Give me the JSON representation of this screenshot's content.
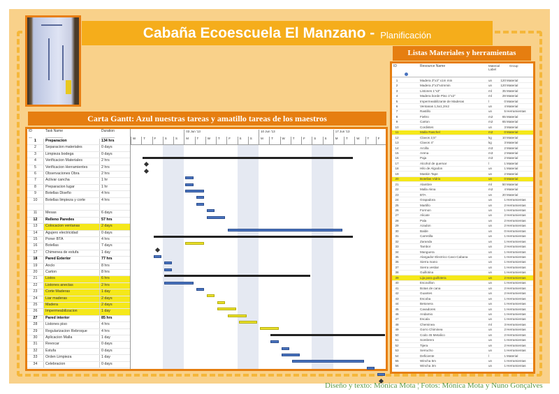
{
  "header": {
    "title": "Cabaña Ecoescuela El Manzano -",
    "subtitle": "Planificación"
  },
  "gantt": {
    "heading": "Carta Gantt: Azul nuestras tareas y amatillo tareas de los maestros",
    "columns": {
      "id": "ID",
      "name": "Task Name",
      "duration": "Duration"
    },
    "timeline": {
      "start": "2013-05-29",
      "end": "2013-06-21",
      "weeks": [
        "03 Jun '13",
        "10 Jun '13",
        "17 Jun '13"
      ],
      "day_letters": [
        "W",
        "T",
        "F",
        "S",
        "S",
        "M",
        "T",
        "W",
        "T",
        "F",
        "S",
        "S",
        "M",
        "T",
        "W",
        "T",
        "F",
        "S",
        "S",
        "M",
        "T",
        "W",
        "T",
        "F"
      ]
    },
    "colors": {
      "ours": "#4a74bf",
      "masters": "#e9e02a",
      "summary": "#222222",
      "highlight": "#f5e81a"
    },
    "tasks": [
      {
        "id": "1",
        "name": "Preparacion",
        "duration": "134 hrs",
        "kind": "summary",
        "start": "2013-05-30",
        "end": "2013-06-18"
      },
      {
        "id": "2",
        "name": "Separacion materiales",
        "duration": "0 days",
        "kind": "milestone",
        "start": "2013-05-30",
        "end": "2013-05-30"
      },
      {
        "id": "3",
        "name": "Limpieza bodega",
        "duration": "0 days",
        "kind": "milestone",
        "start": "2013-05-30",
        "end": "2013-05-30"
      },
      {
        "id": "4",
        "name": "Verificacion Materiales",
        "duration": "2 hrs",
        "kind": "ours",
        "start": "2013-06-03",
        "end": "2013-06-03"
      },
      {
        "id": "5",
        "name": "Verificacion Herramientes",
        "duration": "2 hrs",
        "kind": "ours",
        "start": "2013-06-03",
        "end": "2013-06-03"
      },
      {
        "id": "6",
        "name": "Observaciones Obra",
        "duration": "2 hrs",
        "kind": "ours",
        "start": "2013-06-03",
        "end": "2013-06-04"
      },
      {
        "id": "7",
        "name": "Activar cancha",
        "duration": "1 hr",
        "kind": "ours",
        "start": "2013-06-04",
        "end": "2013-06-04"
      },
      {
        "id": "8",
        "name": "Preparacion lugar",
        "duration": "1 hr",
        "kind": "ours",
        "start": "2013-06-04",
        "end": "2013-06-04"
      },
      {
        "id": "9",
        "name": "Botellas Diseño",
        "duration": "4 hrs",
        "kind": "ours",
        "start": "2013-06-05",
        "end": "2013-06-05"
      },
      {
        "id": "10",
        "name": "Botellas limpieza y corte",
        "duration": "4 hrs",
        "kind": "ours",
        "start": "2013-06-05",
        "end": "2013-06-06"
      },
      {
        "id": "",
        "name": "",
        "duration": "",
        "kind": "blank"
      },
      {
        "id": "11",
        "name": "Mesas",
        "duration": "6 days",
        "kind": "ours",
        "start": "2013-06-07",
        "end": "2013-06-17"
      },
      {
        "id": "12",
        "name": "Relleno Paredes",
        "duration": "57 hrs",
        "kind": "summary",
        "start": "2013-05-31",
        "end": "2013-06-18"
      },
      {
        "id": "13",
        "name": "Colocacion ventanas",
        "duration": "2 days",
        "kind": "masters",
        "start": "2013-06-03",
        "end": "2013-06-04"
      },
      {
        "id": "14",
        "name": "Agujero electricidad",
        "duration": "0 days",
        "kind": "milestone",
        "start": "2013-05-31",
        "end": "2013-05-31"
      },
      {
        "id": "15",
        "name": "Poner BTA",
        "duration": "4 hrs",
        "kind": "ours",
        "start": "2013-05-31",
        "end": "2013-05-31"
      },
      {
        "id": "16",
        "name": "Botellas",
        "duration": "7 days",
        "kind": "ours",
        "start": "2013-06-01",
        "end": "2013-06-01"
      },
      {
        "id": "17",
        "name": "Chimenea de estufa",
        "duration": "1 day",
        "kind": "ours",
        "start": "2013-06-01",
        "end": "2013-06-01"
      },
      {
        "id": "18",
        "name": "Pared Exterior",
        "duration": "77 hrs",
        "kind": "summary",
        "start": "2013-06-01",
        "end": "2013-06-14"
      },
      {
        "id": "19",
        "name": "Anclo",
        "duration": "8 hrs",
        "kind": "ours",
        "start": "2013-06-01",
        "end": "2013-06-03"
      },
      {
        "id": "20",
        "name": "Carton",
        "duration": "8 hrs",
        "kind": "ours",
        "start": "2013-06-04",
        "end": "2013-06-04"
      },
      {
        "id": "21",
        "name": "Listos",
        "duration": "6 hrs",
        "kind": "masters",
        "start": "2013-06-05",
        "end": "2013-06-05"
      },
      {
        "id": "22",
        "name": "Listones anectas",
        "duration": "2 hrs",
        "kind": "masters",
        "start": "2013-06-06",
        "end": "2013-06-06"
      },
      {
        "id": "23",
        "name": "Corte Maderas",
        "duration": "1 day",
        "kind": "masters",
        "start": "2013-06-06",
        "end": "2013-06-07"
      },
      {
        "id": "24",
        "name": "Liar maderas",
        "duration": "2 days",
        "kind": "masters",
        "start": "2013-06-07",
        "end": "2013-06-08"
      },
      {
        "id": "25",
        "name": "Madera",
        "duration": "2 days",
        "kind": "masters",
        "start": "2013-06-08",
        "end": "2013-06-09"
      },
      {
        "id": "26",
        "name": "Impermeabilizacion",
        "duration": "1 day",
        "kind": "masters",
        "start": "2013-06-10",
        "end": "2013-06-11"
      },
      {
        "id": "27",
        "name": "Pared interior",
        "duration": "85 hrs",
        "kind": "summary",
        "start": "2013-06-11",
        "end": "2013-06-21"
      },
      {
        "id": "28",
        "name": "Listones piso",
        "duration": "4 hrs",
        "kind": "ours",
        "start": "2013-06-11",
        "end": "2013-06-11"
      },
      {
        "id": "29",
        "name": "Regularizacion Rebroque",
        "duration": "4 hrs",
        "kind": "ours",
        "start": "2013-06-12",
        "end": "2013-06-12"
      },
      {
        "id": "30",
        "name": "Aplicacion Malla",
        "duration": "1 day",
        "kind": "ours",
        "start": "2013-06-12",
        "end": "2013-06-13"
      },
      {
        "id": "31",
        "name": "Revocar",
        "duration": "0 days",
        "kind": "ours",
        "start": "2013-06-13",
        "end": "2013-06-19"
      },
      {
        "id": "32",
        "name": "Estufa",
        "duration": "0 days",
        "kind": "ours",
        "start": "2013-06-20",
        "end": "2013-06-20"
      },
      {
        "id": "33",
        "name": "Orden Limpieza",
        "duration": "1 day",
        "kind": "ours",
        "start": "2013-06-21",
        "end": "2013-06-21"
      },
      {
        "id": "34",
        "name": "Celebracion",
        "duration": "0 days",
        "kind": "milestone",
        "start": "2013-06-21",
        "end": "2013-06-21"
      }
    ]
  },
  "materials": {
    "heading": "Listas Materiales y herramientas",
    "columns": {
      "id": "ID",
      "name": "Resource Name",
      "label": "Material Label",
      "group": "Group"
    },
    "rows": [
      [
        "1",
        "Madera 3\"x3\" x1m min",
        "un",
        "120",
        "Material",
        0
      ],
      [
        "2",
        "Madera 2\"x3\"x4mmin",
        "un",
        "120",
        "Material",
        0
      ],
      [
        "3",
        "Listones 1\"x3\"",
        "ml",
        "35",
        "Material",
        0
      ],
      [
        "4",
        "Madera borde Piso 1\"x2\"",
        "ml",
        "28",
        "Material",
        0
      ],
      [
        "5",
        "Impermeabilizante de Maderas",
        "l",
        "0",
        "Material",
        0
      ],
      [
        "6",
        "Ventanas 1,5x1,2m2",
        "un",
        "4",
        "Material",
        0
      ],
      [
        "7",
        "Rastillo",
        "un",
        "5",
        "Herramientas",
        0
      ],
      [
        "8",
        "Fieltro",
        "m2",
        "65",
        "Material",
        0
      ],
      [
        "9",
        "Carton",
        "m2",
        "65",
        "Material",
        0
      ],
      [
        "10",
        "Cordistes",
        "un",
        "3",
        "Material",
        0
      ],
      [
        "11",
        "Malla Raschel",
        "m2",
        "0",
        "Material",
        1
      ],
      [
        "12",
        "Clavos 2,5\"",
        "kg",
        "10",
        "Material",
        0
      ],
      [
        "13",
        "Clavos 4\"",
        "kg",
        "3",
        "Material",
        0
      ],
      [
        "14",
        "Arcilla",
        "m3",
        "2",
        "Material",
        0
      ],
      [
        "15",
        "Arena",
        "m3",
        "2",
        "Material",
        0
      ],
      [
        "16",
        "Paja",
        "m3",
        "2",
        "Material",
        0
      ],
      [
        "17",
        "Alcohol de quemar",
        "l",
        "1",
        "Material",
        0
      ],
      [
        "18",
        "Hilo de Algodon",
        "un",
        "1",
        "Material",
        0
      ],
      [
        "19",
        "Maskin Tape",
        "un",
        "2",
        "Material",
        0
      ],
      [
        "20",
        "Botellas Vidrio",
        "un",
        "0",
        "Material",
        1
      ],
      [
        "21",
        "Alambre",
        "ml",
        "50",
        "Material",
        0
      ],
      [
        "22",
        "Malla Akna",
        "m2",
        "4",
        "Material",
        0
      ],
      [
        "23",
        "BTA",
        "un",
        "20",
        "Material",
        0
      ],
      [
        "24",
        "Grapadora",
        "un",
        "1",
        "Herramientas",
        0
      ],
      [
        "25",
        "Martillo",
        "un",
        "2",
        "Herramientas",
        0
      ],
      [
        "26",
        "Formon",
        "un",
        "1",
        "Herramientas",
        0
      ],
      [
        "27",
        "Alicate",
        "un",
        "2",
        "Herramientas",
        0
      ],
      [
        "28",
        "Pala",
        "un",
        "2",
        "Herramientas",
        0
      ],
      [
        "29",
        "Azadon",
        "un",
        "2",
        "Herramientas",
        0
      ],
      [
        "30",
        "Balde",
        "un",
        "0",
        "Herramientas",
        0
      ],
      [
        "31",
        "Carretilla",
        "un",
        "1",
        "Herramientas",
        0
      ],
      [
        "32",
        "Zaranda",
        "un",
        "1",
        "Herramientas",
        0
      ],
      [
        "33",
        "Tambor",
        "un",
        "2",
        "Herramientas",
        0
      ],
      [
        "34",
        "Manguera",
        "un",
        "1",
        "Herramientas",
        0
      ],
      [
        "35",
        "Alargador Electrico Cavo-Cabana",
        "un",
        "1",
        "Herramientas",
        0
      ],
      [
        "36",
        "Sierra mano",
        "un",
        "1",
        "Herramientas",
        0
      ],
      [
        "37",
        "Sierra vestiar",
        "un",
        "1",
        "Herramientas",
        0
      ],
      [
        "38",
        "Guillotina",
        "un",
        "1",
        "Herramientas",
        0
      ],
      [
        "39",
        "Lija para guillotera",
        "un",
        "2",
        "Herramientas",
        1
      ],
      [
        "40",
        "Escovillon",
        "un",
        "1",
        "Herramientas",
        0
      ],
      [
        "41",
        "Botas de cana",
        "un",
        "2",
        "Herramientas",
        0
      ],
      [
        "42",
        "Guantes",
        "un",
        "2",
        "Herramientas",
        0
      ],
      [
        "43",
        "Escoba",
        "un",
        "1",
        "Herramientas",
        0
      ],
      [
        "44",
        "Betonera",
        "un",
        "1",
        "Herramientas",
        0
      ],
      [
        "45",
        "Cavadores",
        "un",
        "1",
        "Herramientas",
        0
      ],
      [
        "46",
        "Andamio",
        "un",
        "1",
        "Herramientas",
        0
      ],
      [
        "47",
        "Escala",
        "un",
        "1",
        "Herramientas",
        0
      ],
      [
        "48",
        "Cheminea",
        "ml",
        "3",
        "Herramientas",
        0
      ],
      [
        "49",
        "Gorro Chiminea",
        "un",
        "2",
        "Herramientas",
        0
      ],
      [
        "50",
        "Codo 45 Metalico",
        "un",
        "2",
        "Herramientas",
        0
      ],
      [
        "51",
        "Sombrero",
        "un",
        "1",
        "Herramientas",
        0
      ],
      [
        "52",
        "Tijera",
        "un",
        "2",
        "Herramientas",
        0
      ],
      [
        "53",
        "Serrucho",
        "un",
        "1",
        "Herramientas",
        0
      ],
      [
        "54",
        "Deficiente",
        "l",
        "1",
        "Material",
        0
      ],
      [
        "55",
        "Wincha 5m",
        "un",
        "1",
        "Herramientas",
        0
      ],
      [
        "56",
        "Wincha 3m",
        "un",
        "1",
        "Herramientas",
        0
      ]
    ]
  },
  "footer": "Diseño y texto: Mónica Mota ¦ Fotos: Mónica Mota y Nuno Gonçalves"
}
